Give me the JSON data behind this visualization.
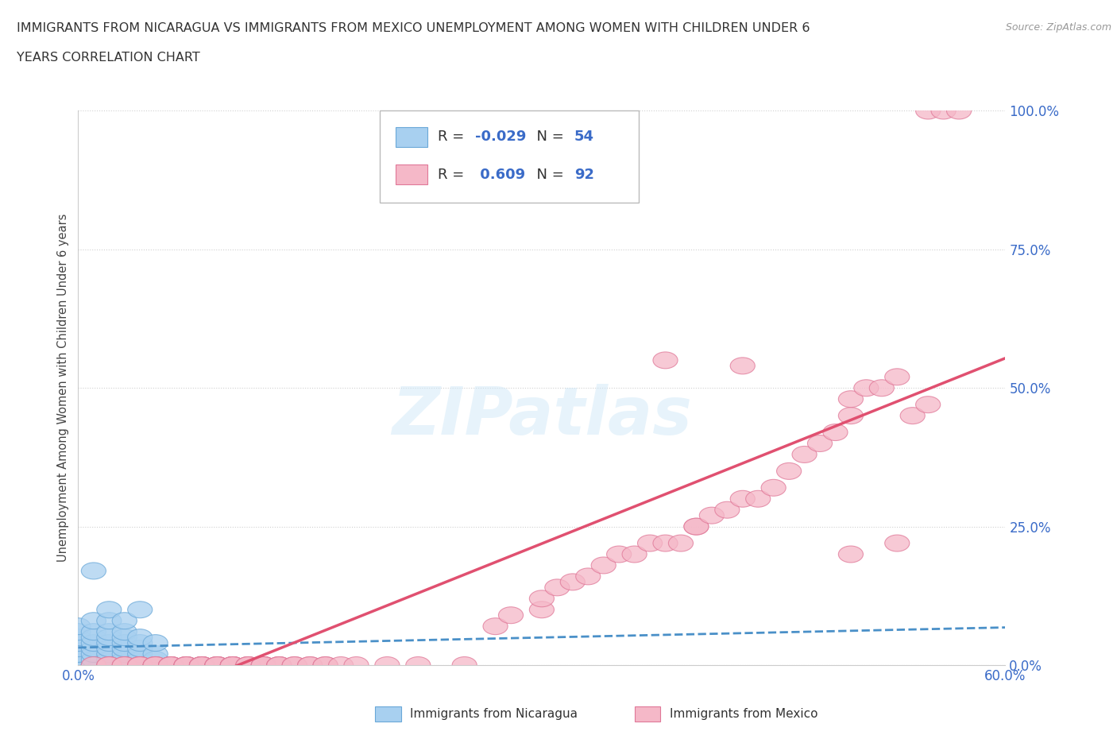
{
  "title_line1": "IMMIGRANTS FROM NICARAGUA VS IMMIGRANTS FROM MEXICO UNEMPLOYMENT AMONG WOMEN WITH CHILDREN UNDER 6",
  "title_line2": "YEARS CORRELATION CHART",
  "source": "Source: ZipAtlas.com",
  "ylabel": "Unemployment Among Women with Children Under 6 years",
  "xlim": [
    0.0,
    0.62
  ],
  "ylim": [
    -0.02,
    1.08
  ],
  "plot_xlim": [
    0.0,
    0.6
  ],
  "plot_ylim": [
    0.0,
    1.0
  ],
  "xticks": [
    0.0,
    0.1,
    0.2,
    0.3,
    0.4,
    0.5,
    0.6
  ],
  "xticklabels": [
    "0.0%",
    "",
    "",
    "",
    "",
    "",
    "60.0%"
  ],
  "yticks": [
    0.0,
    0.25,
    0.5,
    0.75,
    1.0
  ],
  "yticklabels": [
    "0.0%",
    "25.0%",
    "50.0%",
    "75.0%",
    "100.0%"
  ],
  "nicaragua_color": "#a8d0f0",
  "nicaragua_edge": "#6aa8d8",
  "mexico_color": "#f5b8c8",
  "mexico_edge": "#e07898",
  "nicaragua_R": -0.029,
  "nicaragua_N": 54,
  "mexico_R": 0.609,
  "mexico_N": 92,
  "legend1_label": "Immigrants from Nicaragua",
  "legend2_label": "Immigrants from Mexico",
  "watermark": "ZIPatlas",
  "background_color": "#ffffff",
  "grid_color": "#d0d0d0",
  "trendline_nicaragua_color": "#4a90c8",
  "trendline_mexico_color": "#e05070",
  "nicaragua_scatter": [
    [
      0.0,
      0.0
    ],
    [
      0.0,
      0.0
    ],
    [
      0.0,
      0.0
    ],
    [
      0.0,
      0.0
    ],
    [
      0.0,
      0.0
    ],
    [
      0.0,
      0.01
    ],
    [
      0.0,
      0.01
    ],
    [
      0.0,
      0.02
    ],
    [
      0.0,
      0.02
    ],
    [
      0.0,
      0.03
    ],
    [
      0.0,
      0.04
    ],
    [
      0.0,
      0.05
    ],
    [
      0.0,
      0.06
    ],
    [
      0.0,
      0.07
    ],
    [
      0.01,
      0.0
    ],
    [
      0.01,
      0.0
    ],
    [
      0.01,
      0.0
    ],
    [
      0.01,
      0.01
    ],
    [
      0.01,
      0.02
    ],
    [
      0.01,
      0.03
    ],
    [
      0.01,
      0.04
    ],
    [
      0.01,
      0.05
    ],
    [
      0.01,
      0.06
    ],
    [
      0.01,
      0.08
    ],
    [
      0.01,
      0.17
    ],
    [
      0.02,
      0.0
    ],
    [
      0.02,
      0.0
    ],
    [
      0.02,
      0.01
    ],
    [
      0.02,
      0.02
    ],
    [
      0.02,
      0.03
    ],
    [
      0.02,
      0.04
    ],
    [
      0.02,
      0.05
    ],
    [
      0.02,
      0.06
    ],
    [
      0.02,
      0.08
    ],
    [
      0.02,
      0.1
    ],
    [
      0.03,
      0.0
    ],
    [
      0.03,
      0.01
    ],
    [
      0.03,
      0.02
    ],
    [
      0.03,
      0.03
    ],
    [
      0.03,
      0.04
    ],
    [
      0.03,
      0.05
    ],
    [
      0.03,
      0.06
    ],
    [
      0.03,
      0.08
    ],
    [
      0.04,
      0.0
    ],
    [
      0.04,
      0.01
    ],
    [
      0.04,
      0.02
    ],
    [
      0.04,
      0.03
    ],
    [
      0.04,
      0.04
    ],
    [
      0.04,
      0.05
    ],
    [
      0.04,
      0.1
    ],
    [
      0.05,
      0.0
    ],
    [
      0.05,
      0.01
    ],
    [
      0.05,
      0.02
    ],
    [
      0.05,
      0.04
    ]
  ],
  "mexico_scatter": [
    [
      0.01,
      0.0
    ],
    [
      0.02,
      0.0
    ],
    [
      0.02,
      0.0
    ],
    [
      0.03,
      0.0
    ],
    [
      0.03,
      0.0
    ],
    [
      0.04,
      0.0
    ],
    [
      0.04,
      0.0
    ],
    [
      0.04,
      0.0
    ],
    [
      0.05,
      0.0
    ],
    [
      0.05,
      0.0
    ],
    [
      0.05,
      0.0
    ],
    [
      0.06,
      0.0
    ],
    [
      0.06,
      0.0
    ],
    [
      0.06,
      0.0
    ],
    [
      0.06,
      0.0
    ],
    [
      0.07,
      0.0
    ],
    [
      0.07,
      0.0
    ],
    [
      0.07,
      0.0
    ],
    [
      0.07,
      0.0
    ],
    [
      0.08,
      0.0
    ],
    [
      0.08,
      0.0
    ],
    [
      0.08,
      0.0
    ],
    [
      0.08,
      0.0
    ],
    [
      0.08,
      0.0
    ],
    [
      0.09,
      0.0
    ],
    [
      0.09,
      0.0
    ],
    [
      0.09,
      0.0
    ],
    [
      0.09,
      0.0
    ],
    [
      0.1,
      0.0
    ],
    [
      0.1,
      0.0
    ],
    [
      0.1,
      0.0
    ],
    [
      0.1,
      0.0
    ],
    [
      0.1,
      0.0
    ],
    [
      0.11,
      0.0
    ],
    [
      0.11,
      0.0
    ],
    [
      0.11,
      0.0
    ],
    [
      0.12,
      0.0
    ],
    [
      0.12,
      0.0
    ],
    [
      0.12,
      0.0
    ],
    [
      0.12,
      0.0
    ],
    [
      0.13,
      0.0
    ],
    [
      0.13,
      0.0
    ],
    [
      0.13,
      0.0
    ],
    [
      0.14,
      0.0
    ],
    [
      0.14,
      0.0
    ],
    [
      0.15,
      0.0
    ],
    [
      0.15,
      0.0
    ],
    [
      0.16,
      0.0
    ],
    [
      0.16,
      0.0
    ],
    [
      0.17,
      0.0
    ],
    [
      0.18,
      0.0
    ],
    [
      0.2,
      0.0
    ],
    [
      0.22,
      0.0
    ],
    [
      0.25,
      0.0
    ],
    [
      0.27,
      0.07
    ],
    [
      0.28,
      0.09
    ],
    [
      0.3,
      0.1
    ],
    [
      0.3,
      0.12
    ],
    [
      0.31,
      0.14
    ],
    [
      0.32,
      0.15
    ],
    [
      0.33,
      0.16
    ],
    [
      0.34,
      0.18
    ],
    [
      0.35,
      0.2
    ],
    [
      0.36,
      0.2
    ],
    [
      0.37,
      0.22
    ],
    [
      0.38,
      0.22
    ],
    [
      0.39,
      0.22
    ],
    [
      0.4,
      0.25
    ],
    [
      0.4,
      0.25
    ],
    [
      0.41,
      0.27
    ],
    [
      0.42,
      0.28
    ],
    [
      0.43,
      0.3
    ],
    [
      0.44,
      0.3
    ],
    [
      0.45,
      0.32
    ],
    [
      0.46,
      0.35
    ],
    [
      0.47,
      0.38
    ],
    [
      0.48,
      0.4
    ],
    [
      0.49,
      0.42
    ],
    [
      0.5,
      0.45
    ],
    [
      0.5,
      0.48
    ],
    [
      0.51,
      0.5
    ],
    [
      0.52,
      0.5
    ],
    [
      0.53,
      0.52
    ],
    [
      0.54,
      0.45
    ],
    [
      0.55,
      0.47
    ],
    [
      0.55,
      1.0
    ],
    [
      0.56,
      1.0
    ],
    [
      0.57,
      1.0
    ],
    [
      0.38,
      0.55
    ],
    [
      0.43,
      0.54
    ],
    [
      0.5,
      0.2
    ],
    [
      0.53,
      0.22
    ]
  ]
}
